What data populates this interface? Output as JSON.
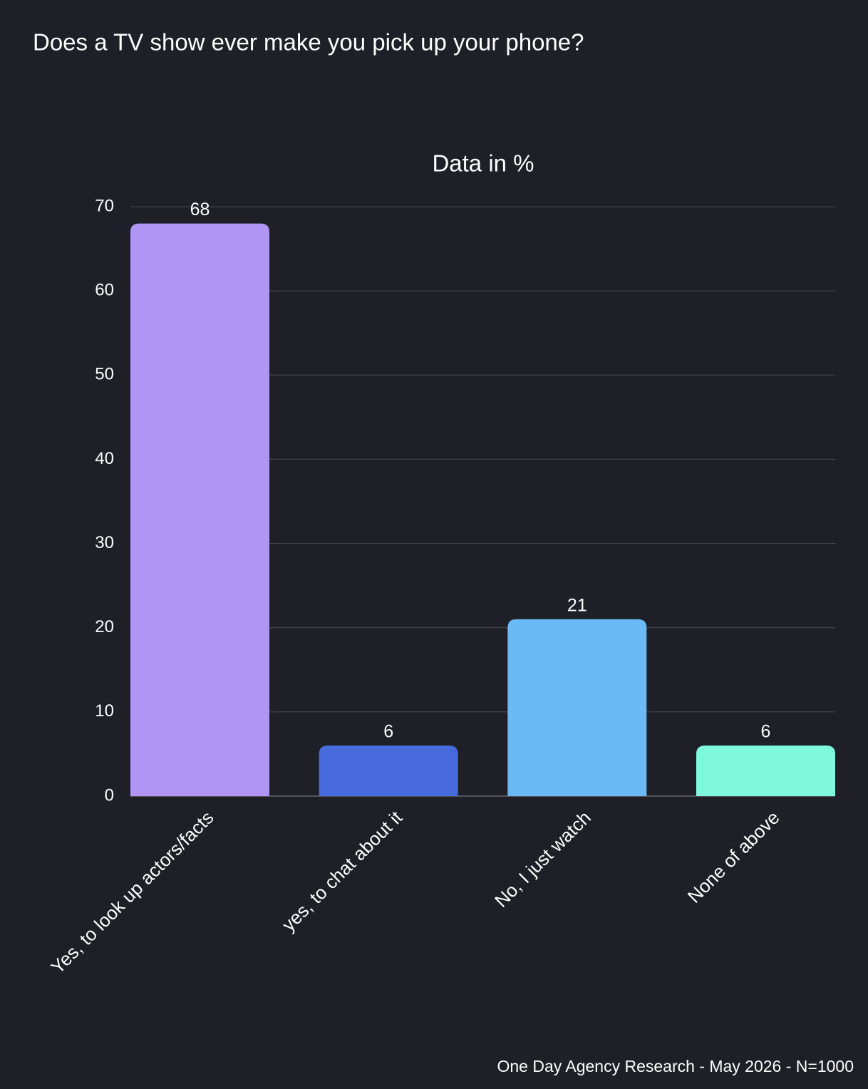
{
  "chart_data": {
    "type": "bar",
    "title": "Does a TV show ever make you pick up your phone?",
    "subtitle": "Data in %",
    "source": "One Day Agency Research - May 2026 - N=1000",
    "categories": [
      "Yes, to look up actors/facts",
      "yes, to chat about it",
      "No, I just watch",
      "None of above"
    ],
    "values": [
      68,
      6,
      21,
      6
    ],
    "colors": [
      "#b095f7",
      "#476bdd",
      "#6bbaf8",
      "#7ff9dc"
    ],
    "ylim": [
      0,
      70
    ],
    "yticks": [
      0,
      10,
      20,
      30,
      40,
      50,
      60,
      70
    ],
    "grid": true
  }
}
